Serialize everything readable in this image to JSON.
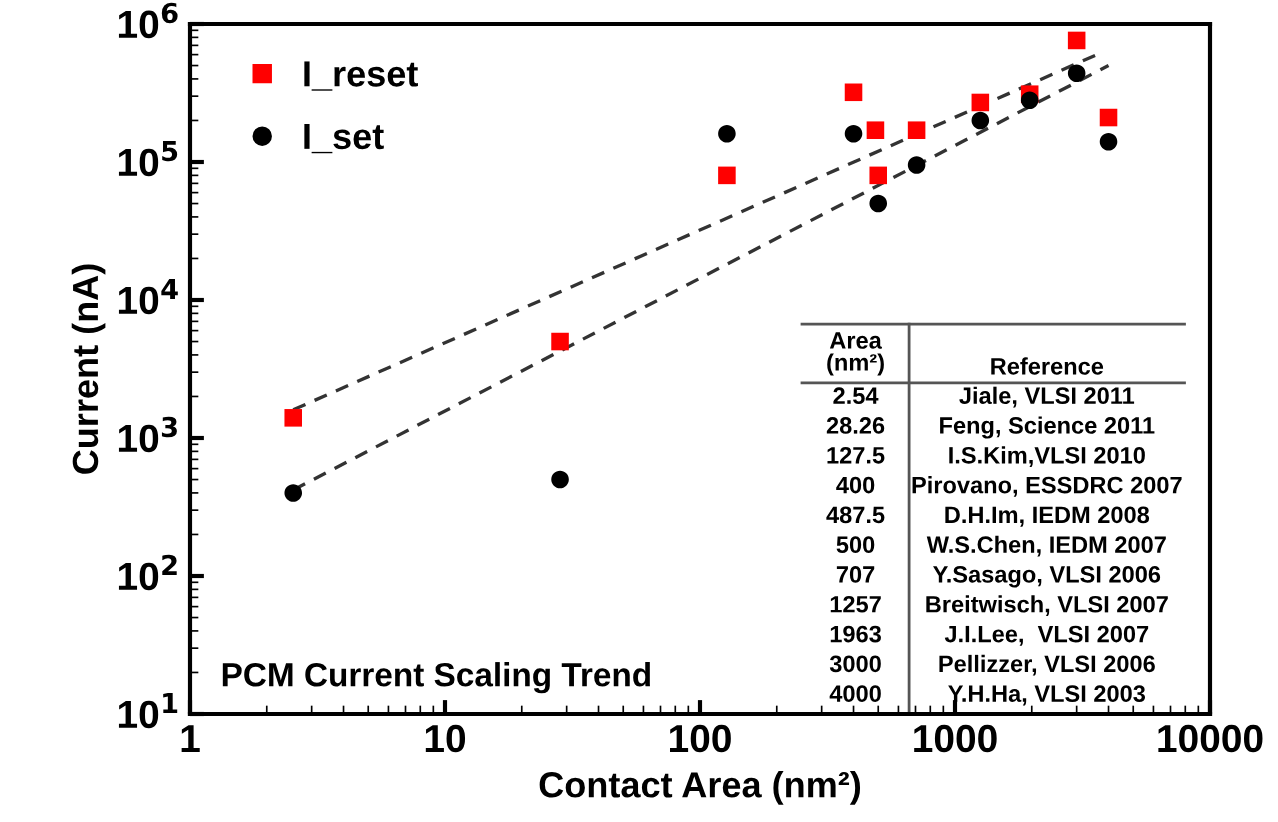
{
  "chart_data": {
    "type": "scatter",
    "xlabel": "Contact Area (nm²)",
    "ylabel": "Current (nA)",
    "log": "xy",
    "xlim": [
      1,
      10000
    ],
    "xticks": [
      1,
      10,
      100,
      1000,
      10000
    ],
    "ylim": [
      10,
      1000000
    ],
    "yticks": [
      {
        "value": 10,
        "label": "10$^{1}$"
      },
      {
        "value": 100,
        "label": "10$^{2}$"
      },
      {
        "value": 1000,
        "label": "10$^{3}$"
      },
      {
        "value": 10000,
        "label": "10$^{4}$"
      },
      {
        "value": 100000,
        "label": "10$^{5}$"
      },
      {
        "value": 1000000,
        "label": "10$^{6}$"
      }
    ],
    "x": [
      2.54,
      28.26,
      127.5,
      400,
      487.5,
      500,
      707,
      1257,
      1963,
      3000,
      4000
    ],
    "series": [
      {
        "name": "I_reset",
        "color": "#ff0000",
        "marker": "square",
        "values": [
          1400,
          5000,
          80000,
          320000,
          170000,
          80000,
          170000,
          270000,
          310000,
          760000,
          210000
        ]
      },
      {
        "name": "I_set",
        "color": "#000000",
        "marker": "circle",
        "values": [
          400,
          500,
          160000,
          160000,
          null,
          50000,
          95000,
          200000,
          280000,
          440000,
          140000
        ]
      },
      {
        "type": "line",
        "color": "#333333",
        "line_style": "dashed",
        "marker": "none",
        "x": [
          2.54,
          3600
        ],
        "values": [
          1600,
          600000
        ]
      },
      {
        "type": "line",
        "color": "#333333",
        "line_style": "dashed",
        "marker": "none",
        "x": [
          2.54,
          4000
        ],
        "values": [
          420,
          500000
        ]
      }
    ],
    "legend": "top left",
    "grid": false,
    "annotations": [
      "PCM Current Scaling Trend",
      "Area\n(nm²)",
      "Reference",
      "2.54",
      "Jiale, VLSI 2011",
      "28.26",
      "Feng, Science 2011",
      "127.5",
      "I.S.Kim,VLSI 2010",
      "400",
      "Pirovano, ESSDRC 2007",
      "487.5",
      "D.H.Im, IEDM 2008",
      "500",
      "W.S.Chen, IEDM 2007",
      "707",
      "Y.Sasago, VLSI 2006",
      "1257",
      "Breitwisch, VLSI 2007",
      "1963",
      "J.I.Lee,  VLSI 2007",
      "3000",
      "Pellizzer, VLSI 2006",
      "4000",
      "Y.H.Ha, VLSI 2003"
    ]
  }
}
